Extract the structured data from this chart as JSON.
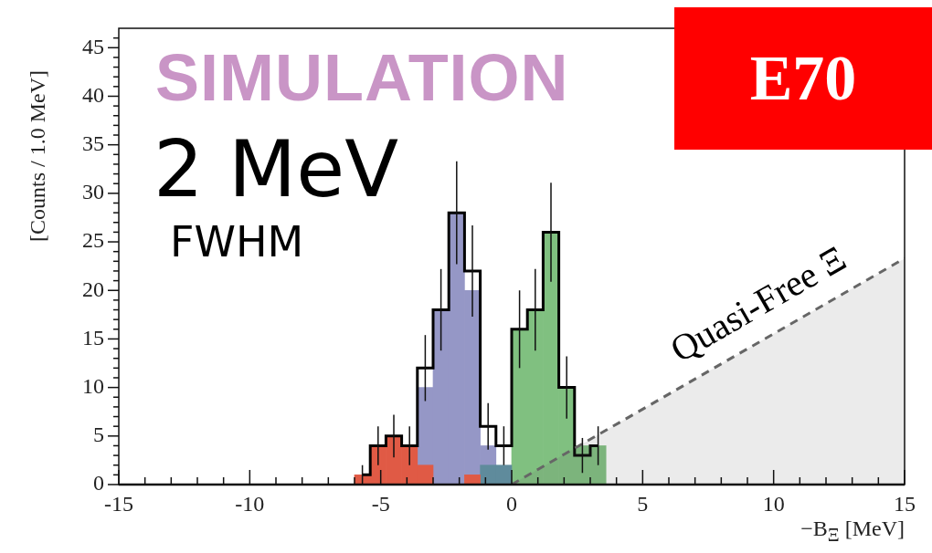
{
  "chart_data": {
    "type": "bar",
    "xlabel": "−B$_{Ξ}$ [MeV]",
    "ylabel": "[Counts / 1.0 MeV]",
    "annotations": [
      "SIMULATION",
      "2 MeV",
      "FWHM",
      "E70"
    ],
    "x": [
      -5.7,
      -5.1,
      -4.5,
      -3.9,
      -3.3,
      -2.7,
      -2.1,
      -1.5,
      -0.9,
      -0.3,
      0.3,
      0.9,
      1.5,
      2.1,
      2.7,
      3.3
    ],
    "stacked": true,
    "series": [
      {
        "color": "#e05a45",
        "values": [
          1,
          4,
          5,
          4,
          2,
          0,
          0,
          1,
          0,
          0,
          0,
          0,
          0,
          0,
          0,
          0
        ]
      },
      {
        "color": "#5f8b9c",
        "values": [
          0,
          0,
          0,
          0,
          0,
          0,
          0,
          0,
          2,
          2,
          0,
          0,
          0,
          0,
          0,
          0
        ]
      },
      {
        "color": "#9597c6",
        "values": [
          0,
          0,
          0,
          0,
          8,
          18,
          28,
          19,
          2,
          0,
          0,
          0,
          0,
          0,
          0,
          0
        ]
      },
      {
        "color": "#80c080",
        "values": [
          0,
          0,
          0,
          0,
          0,
          0,
          0,
          0,
          0,
          0,
          16,
          18,
          26,
          10,
          4,
          4
        ]
      },
      {
        "type": "step",
        "color": "#000000",
        "x": [
          -5.7,
          -5.1,
          -4.5,
          -3.9,
          -3.3,
          -2.7,
          -2.1,
          -1.5,
          -0.9,
          -0.3,
          0.3,
          0.9,
          1.5,
          2.1,
          2.7,
          3.3
        ],
        "values": [
          1,
          4,
          5,
          4,
          12,
          18,
          28,
          22,
          6,
          4,
          16,
          18,
          26,
          10,
          3,
          4
        ],
        "errors": [
          1,
          2,
          2.2,
          2,
          3.4,
          4.2,
          5.3,
          4.7,
          2.4,
          2,
          4,
          4.2,
          5.1,
          3.2,
          1.8,
          2
        ]
      },
      {
        "type": "area",
        "name": "Quasi-Free Ξ",
        "color": "#666666",
        "line_style": "dashed",
        "x": [
          0,
          15
        ],
        "values": [
          0,
          23.3
        ]
      }
    ],
    "xlim": [
      -15,
      15
    ],
    "xticks": [
      -15,
      {
        "value": -14,
        "label": null
      },
      {
        "value": -13,
        "label": null
      },
      {
        "value": -12,
        "label": null
      },
      {
        "value": -11,
        "label": null
      },
      -10,
      {
        "value": -9,
        "label": null
      },
      {
        "value": -8,
        "label": null
      },
      {
        "value": -7,
        "label": null
      },
      {
        "value": -6,
        "label": null
      },
      -5,
      {
        "value": -4,
        "label": null
      },
      {
        "value": -3,
        "label": null
      },
      {
        "value": -2,
        "label": null
      },
      {
        "value": -1,
        "label": null
      },
      0,
      {
        "value": 1,
        "label": null
      },
      {
        "value": 2,
        "label": null
      },
      {
        "value": 3,
        "label": null
      },
      {
        "value": 4,
        "label": null
      },
      5,
      {
        "value": 6,
        "label": null
      },
      {
        "value": 7,
        "label": null
      },
      {
        "value": 8,
        "label": null
      },
      {
        "value": 9,
        "label": null
      },
      10,
      {
        "value": 11,
        "label": null
      },
      {
        "value": 12,
        "label": null
      },
      {
        "value": 13,
        "label": null
      },
      {
        "value": 14,
        "label": null
      },
      15
    ],
    "ylim": [
      0,
      47
    ],
    "yticks": [
      0,
      {
        "value": 1,
        "label": null
      },
      {
        "value": 2,
        "label": null
      },
      {
        "value": 3,
        "label": null
      },
      {
        "value": 4,
        "label": null
      },
      5,
      {
        "value": 6,
        "label": null
      },
      {
        "value": 7,
        "label": null
      },
      {
        "value": 8,
        "label": null
      },
      {
        "value": 9,
        "label": null
      },
      10,
      {
        "value": 11,
        "label": null
      },
      {
        "value": 12,
        "label": null
      },
      {
        "value": 13,
        "label": null
      },
      {
        "value": 14,
        "label": null
      },
      15,
      {
        "value": 16,
        "label": null
      },
      {
        "value": 17,
        "label": null
      },
      {
        "value": 18,
        "label": null
      },
      {
        "value": 19,
        "label": null
      },
      20,
      {
        "value": 21,
        "label": null
      },
      {
        "value": 22,
        "label": null
      },
      {
        "value": 23,
        "label": null
      },
      {
        "value": 24,
        "label": null
      },
      25,
      {
        "value": 26,
        "label": null
      },
      {
        "value": 27,
        "label": null
      },
      {
        "value": 28,
        "label": null
      },
      {
        "value": 29,
        "label": null
      },
      30,
      {
        "value": 31,
        "label": null
      },
      {
        "value": 32,
        "label": null
      },
      {
        "value": 33,
        "label": null
      },
      {
        "value": 34,
        "label": null
      },
      35,
      {
        "value": 36,
        "label": null
      },
      {
        "value": 37,
        "label": null
      },
      {
        "value": 38,
        "label": null
      },
      {
        "value": 39,
        "label": null
      },
      40,
      {
        "value": 41,
        "label": null
      },
      {
        "value": 42,
        "label": null
      },
      {
        "value": 43,
        "label": null
      },
      {
        "value": 44,
        "label": null
      },
      45,
      {
        "value": 46,
        "label": null
      }
    ]
  }
}
